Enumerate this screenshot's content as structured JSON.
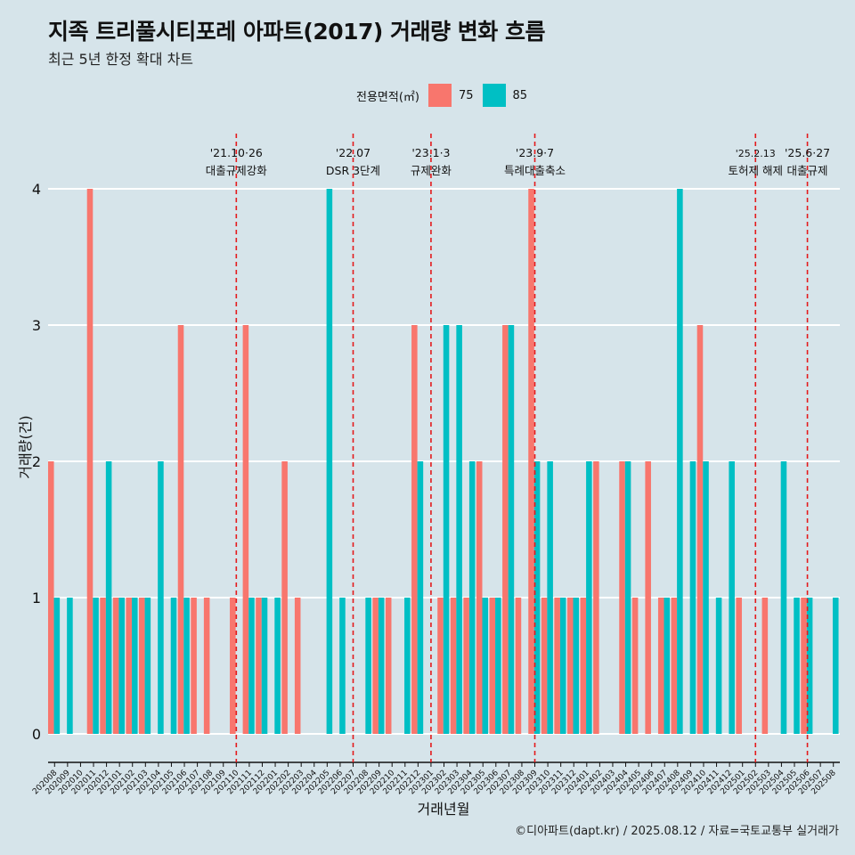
{
  "title": "지족 트리풀시티포레 아파트(2017) 거래량 변화 흐름",
  "subtitle": "최근 5년 한정 확대 차트",
  "caption": "©디아파트(dapt.kr) / 2025.08.12 / 자료=국토교통부 실거래가",
  "colors": {
    "75": "#f8766d",
    "85": "#00bfc4",
    "background": "#d6e4ea",
    "event_line": "#e41a1c"
  },
  "chart_data": {
    "type": "bar",
    "title": "지족 트리풀시티포레 아파트(2017) 거래량 변화 흐름",
    "subtitle": "최근 5년 한정 확대 차트",
    "xlabel": "거래년월",
    "ylabel": "거래량(건)",
    "ylim": [
      0,
      4
    ],
    "yticks": [
      0,
      1,
      2,
      3,
      4
    ],
    "grid": true,
    "legend": {
      "title": "전용면적(㎡)",
      "position": "top",
      "entries": [
        "75",
        "85"
      ]
    },
    "categories": [
      "202008",
      "202009",
      "202010",
      "202011",
      "202012",
      "202101",
      "202102",
      "202103",
      "202104",
      "202105",
      "202106",
      "202107",
      "202108",
      "202109",
      "202110",
      "202111",
      "202112",
      "202201",
      "202202",
      "202203",
      "202204",
      "202205",
      "202206",
      "202207",
      "202208",
      "202209",
      "202210",
      "202211",
      "202212",
      "202301",
      "202302",
      "202303",
      "202304",
      "202305",
      "202306",
      "202307",
      "202308",
      "202309",
      "202310",
      "202311",
      "202312",
      "202401",
      "202402",
      "202403",
      "202404",
      "202405",
      "202406",
      "202407",
      "202408",
      "202409",
      "202410",
      "202411",
      "202412",
      "202501",
      "202502",
      "202503",
      "202504",
      "202505",
      "202506",
      "202507",
      "202508"
    ],
    "series": [
      {
        "name": "75",
        "values": [
          2,
          0,
          0,
          4,
          1,
          1,
          1,
          1,
          0,
          0,
          3,
          1,
          1,
          0,
          1,
          3,
          1,
          0,
          2,
          1,
          0,
          0,
          0,
          0,
          0,
          1,
          1,
          0,
          3,
          0,
          1,
          1,
          1,
          2,
          1,
          3,
          1,
          4,
          1,
          1,
          1,
          1,
          2,
          0,
          2,
          1,
          2,
          1,
          1,
          0,
          3,
          0,
          0,
          1,
          0,
          1,
          0,
          0,
          1,
          0,
          0
        ]
      },
      {
        "name": "85",
        "values": [
          1,
          1,
          0,
          1,
          2,
          1,
          1,
          1,
          2,
          1,
          1,
          0,
          0,
          0,
          0,
          1,
          1,
          1,
          0,
          0,
          0,
          4,
          1,
          0,
          1,
          1,
          0,
          1,
          2,
          0,
          3,
          3,
          2,
          1,
          1,
          3,
          0,
          2,
          2,
          1,
          1,
          2,
          0,
          0,
          2,
          0,
          0,
          1,
          4,
          2,
          2,
          1,
          2,
          0,
          0,
          0,
          2,
          1,
          1,
          0,
          1
        ]
      }
    ],
    "annotations": [
      {
        "x": "202110",
        "date": "'21.10·26",
        "label": "대출규제강화"
      },
      {
        "x": "202207",
        "date": "'22.07",
        "label": "DSR 3단계"
      },
      {
        "x": "202301",
        "date": "'23.1·3",
        "label": "규제완화"
      },
      {
        "x": "202309",
        "date": "'23.9·7",
        "label": "특례대출축소"
      },
      {
        "x": "202502",
        "date": "'25.2.13",
        "label": "토허제 해제"
      },
      {
        "x": "202506",
        "date": "'25.6·27",
        "label": "대출규제"
      }
    ]
  }
}
